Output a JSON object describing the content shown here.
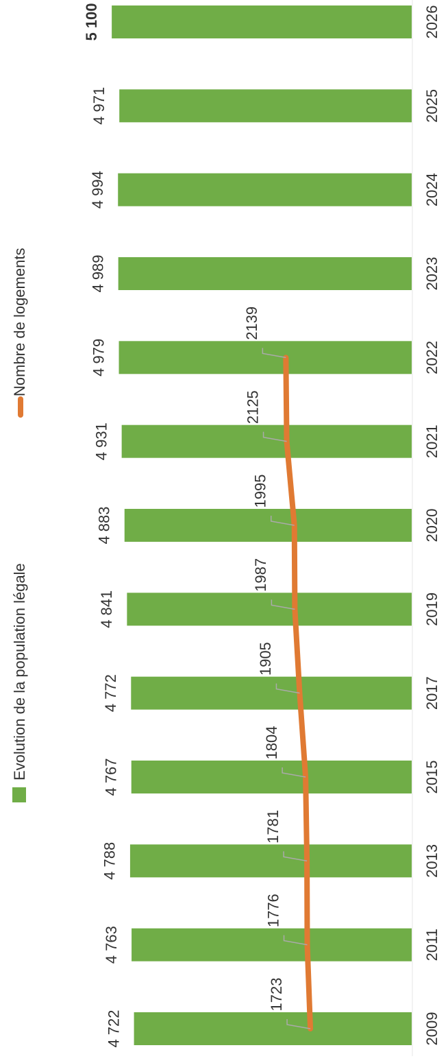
{
  "chart_data": {
    "type": "bar",
    "categories": [
      "2009",
      "2011",
      "2013",
      "2015",
      "2017",
      "2019",
      "2020",
      "2021",
      "2022",
      "2023",
      "2024",
      "2025",
      "2026"
    ],
    "ylim": [
      0,
      7000
    ],
    "legend": "top",
    "series": [
      {
        "name": "Evolution de la population légale",
        "type": "bar",
        "color": "#70ad47",
        "values": [
          4722,
          4763,
          4788,
          4767,
          4772,
          4841,
          4883,
          4931,
          4979,
          4989,
          4994,
          4971,
          5100
        ],
        "value_labels": [
          "4 722",
          "4 763",
          "4 788",
          "4 767",
          "4 772",
          "4 841",
          "4 883",
          "4 931",
          "4 979",
          "4 989",
          "4 994",
          "4 971",
          "5 100"
        ]
      },
      {
        "name": "Nombre de logements",
        "type": "line",
        "color": "#e07a33",
        "values": [
          1723,
          1776,
          1781,
          1804,
          1905,
          1987,
          1995,
          2125,
          2139,
          null,
          null,
          null,
          null
        ]
      }
    ]
  }
}
